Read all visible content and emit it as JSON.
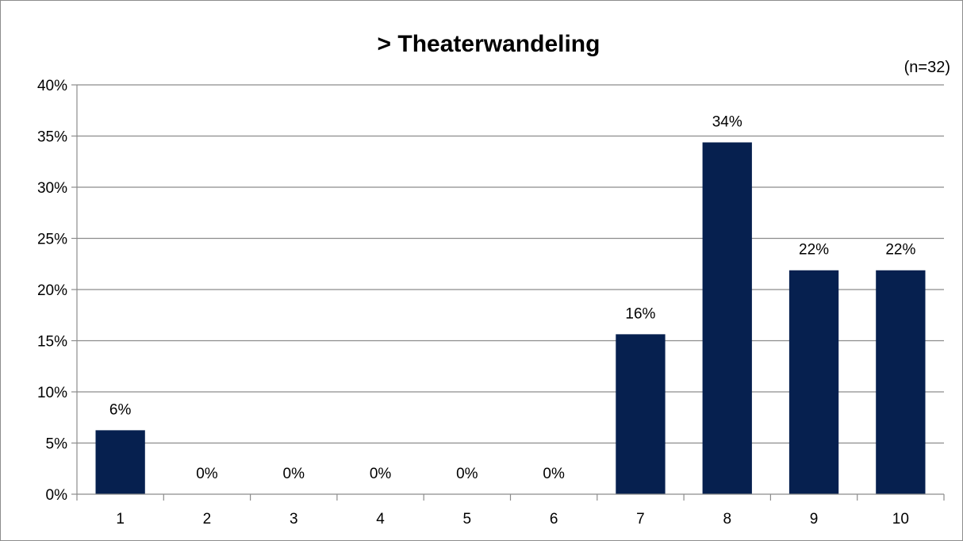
{
  "chart_data": {
    "type": "bar",
    "title": "> Theaterwandeling",
    "note": "(n=32)",
    "xlabel": "",
    "ylabel": "",
    "categories": [
      "1",
      "2",
      "3",
      "4",
      "5",
      "6",
      "7",
      "8",
      "9",
      "10"
    ],
    "values": [
      6.25,
      0,
      0,
      0,
      0,
      0,
      15.63,
      34.38,
      21.88,
      21.88
    ],
    "data_labels": [
      "6%",
      "0%",
      "0%",
      "0%",
      "0%",
      "0%",
      "16%",
      "34%",
      "22%",
      "22%"
    ],
    "ylim": [
      0,
      40
    ],
    "y_ticks": [
      "0%",
      "5%",
      "10%",
      "15%",
      "20%",
      "25%",
      "30%",
      "35%",
      "40%"
    ],
    "grid": true,
    "legend": "none",
    "bar_color": "#06204f",
    "grid_color": "#8c8c8c"
  }
}
